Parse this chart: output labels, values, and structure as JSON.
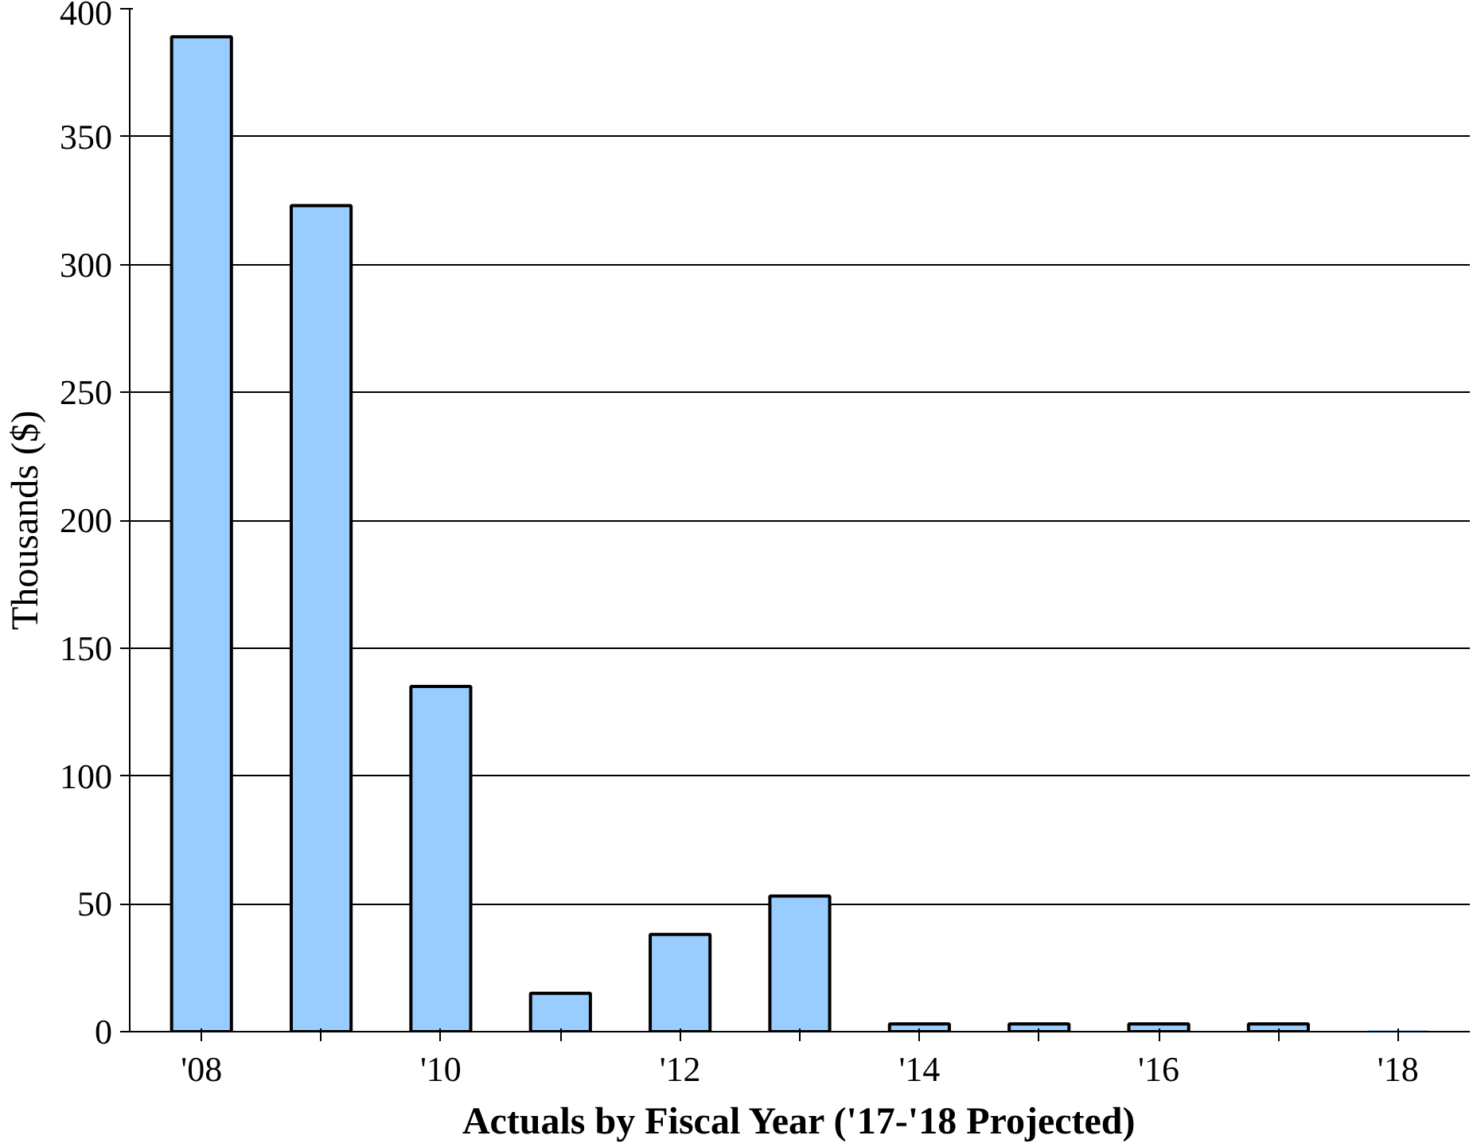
{
  "chart_data": {
    "type": "bar",
    "xlabel": "Actuals by Fiscal Year ('17-'18 Projected)",
    "ylabel": "Thousands ($)",
    "categories": [
      "'08",
      null,
      "'10",
      null,
      "'12",
      null,
      "'14",
      null,
      "'16",
      null,
      "'18"
    ],
    "values": [
      389,
      323,
      135,
      15,
      38,
      53,
      3,
      3,
      3,
      3,
      0
    ],
    "color": "#99ccff",
    "ylim": [
      0,
      400
    ],
    "yticks": [
      0,
      50,
      100,
      150,
      200,
      250,
      300,
      350,
      400
    ],
    "grid": "y"
  }
}
